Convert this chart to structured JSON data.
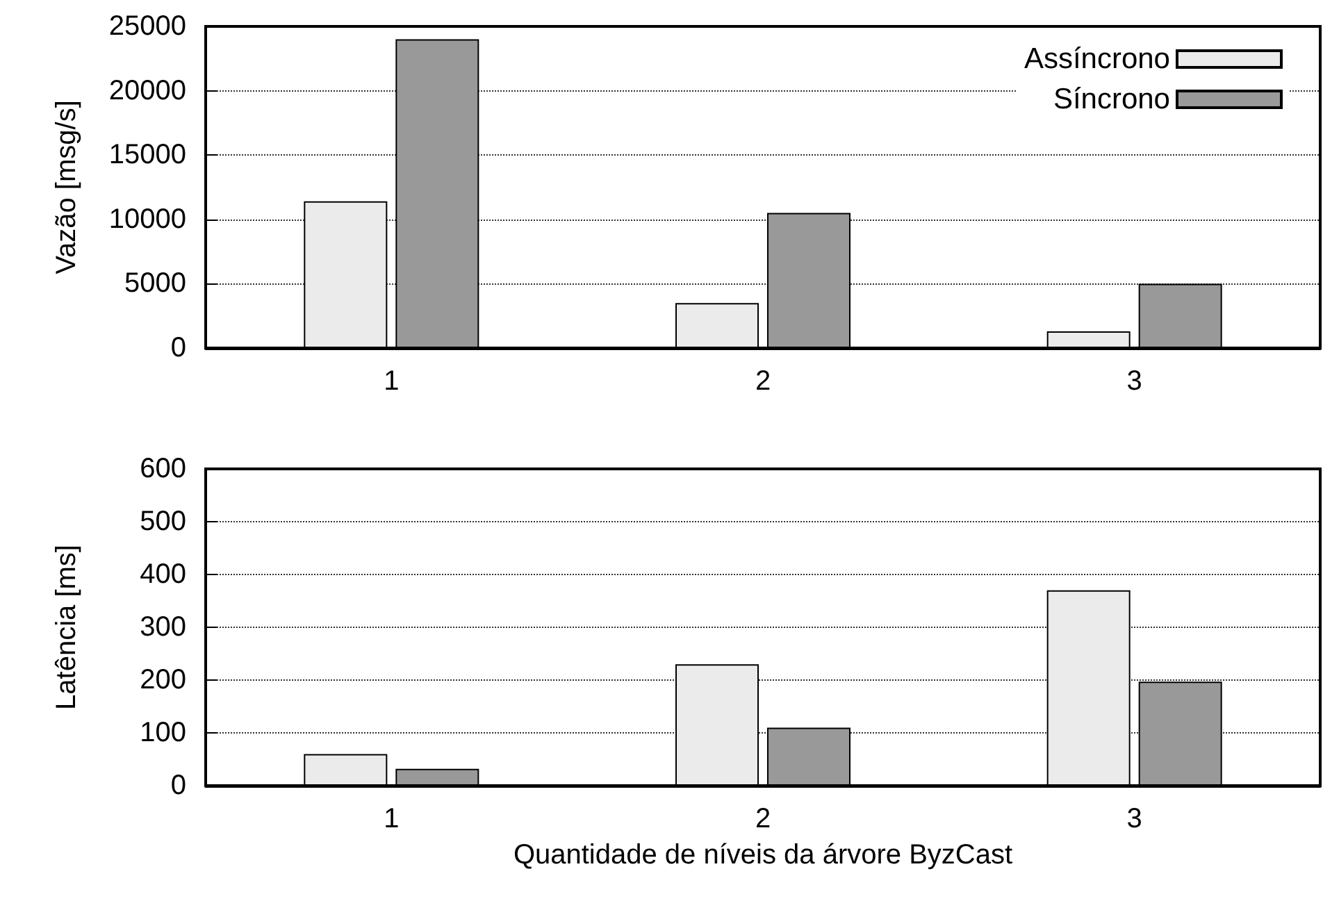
{
  "chart_data": [
    {
      "type": "bar",
      "ylabel": "Vazão [msg/s]",
      "categories": [
        "1",
        "2",
        "3"
      ],
      "series": [
        {
          "name": "Assíncrono",
          "color": "#ebebeb",
          "values": [
            11400,
            3500,
            1300
          ]
        },
        {
          "name": "Síncrono",
          "color": "#999999",
          "values": [
            24000,
            10500,
            5000
          ]
        }
      ],
      "ylim": [
        0,
        25000
      ],
      "yticks": [
        0,
        5000,
        10000,
        15000,
        20000,
        25000
      ],
      "grid": "y",
      "legend": "top right"
    },
    {
      "type": "bar",
      "ylabel": "Latência [ms]",
      "xlabel": "Quantidade de níveis da árvore ByzCast",
      "categories": [
        "1",
        "2",
        "3"
      ],
      "series": [
        {
          "color": "#ebebeb",
          "values": [
            60,
            230,
            370
          ]
        },
        {
          "color": "#999999",
          "values": [
            32,
            110,
            197
          ]
        }
      ],
      "ylim": [
        0,
        600
      ],
      "yticks": [
        0,
        100,
        200,
        300,
        400,
        500,
        600
      ],
      "grid": "y"
    }
  ]
}
